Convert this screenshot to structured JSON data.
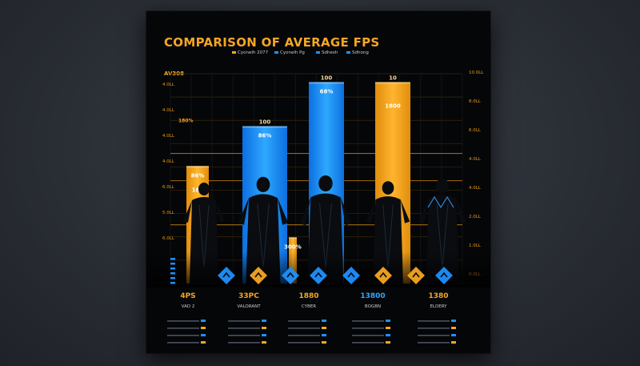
{
  "poster": {
    "title": "COMPARISON OF AVERAGE FPS",
    "legend_items": [
      {
        "label": "Cyonelh 2077",
        "color": "#f5a623"
      },
      {
        "label": "Cyonelh Pg",
        "color": "#1e90ff"
      },
      {
        "label": "Sdhesh",
        "color": "#1e90ff"
      },
      {
        "label": "Sdhong",
        "color": "#1e90ff"
      }
    ],
    "y_axis_label": "AV308"
  },
  "chart_data": {
    "type": "bar",
    "title": "COMPARISON OF AVERAGE FPS",
    "ylabel": "AV308",
    "ylim": [
      0,
      100
    ],
    "grid": true,
    "legend_position": "top-left",
    "categories": [
      "VAD 2",
      "VALORANT",
      "CYBER",
      "BOGBN",
      "ELDERY"
    ],
    "tick_labels_left": [
      "4.0LL",
      "4.0LL",
      "4.0LL",
      "4.0LL",
      "6.0LL",
      "5.0LL",
      "6.0LL"
    ],
    "tick_labels_right": [
      "10.0LL",
      "8.0LL",
      "6.0LL",
      "4.0LL",
      "4.0LL",
      "2.0LL",
      "1.0LL",
      "0.0LL"
    ],
    "bars": [
      {
        "category": "VAD 2",
        "value": 56,
        "color": "#f5a623",
        "top_label": "",
        "inner_label": "86%",
        "mid_label": "180"
      },
      {
        "category": "VALORANT",
        "value": 75,
        "color": "#1e90ff",
        "top_label": "100",
        "inner_label": "86%",
        "mid_label": ""
      },
      {
        "category": "VALORANT",
        "value": 22,
        "color": "#f5a623",
        "top_label": "",
        "inner_label": "300%",
        "mid_label": ""
      },
      {
        "category": "CYBER",
        "value": 96,
        "color": "#1e90ff",
        "top_label": "100",
        "inner_label": "68%",
        "mid_label": ""
      },
      {
        "category": "BOGBN",
        "value": 96,
        "color": "#f5a623",
        "top_label": "10",
        "inner_label": "",
        "mid_label": "1800"
      }
    ],
    "bottom_values": [
      "4PS",
      "33PC",
      "1880",
      "13800",
      "1380"
    ],
    "annotations": [
      "180%",
      "180"
    ]
  }
}
